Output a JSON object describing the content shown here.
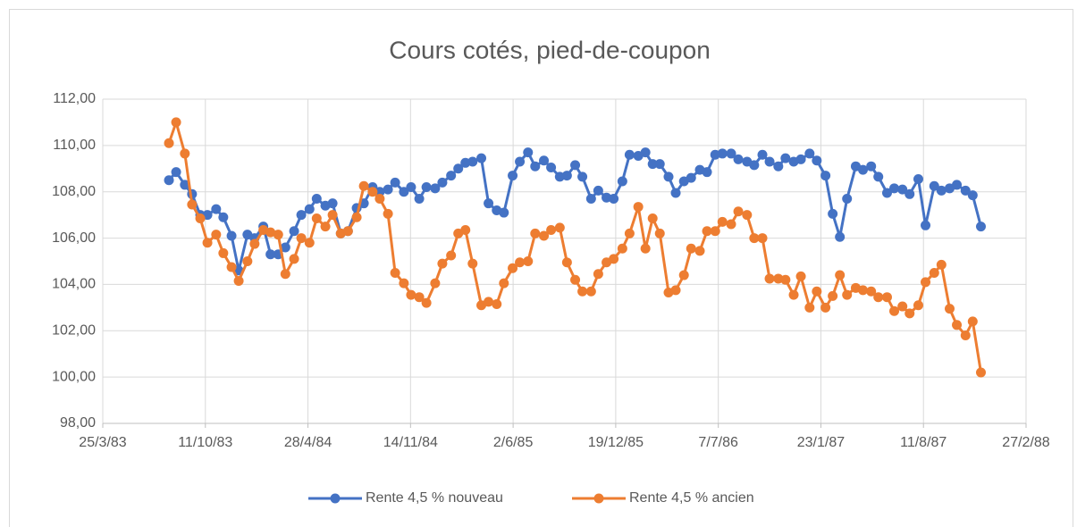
{
  "chart_data": {
    "type": "line",
    "title": "Cours cotés, pied-de-coupon",
    "x": [
      "1983-08-01",
      "1983-08-15",
      "1983-09-01",
      "1983-09-15",
      "1983-10-01",
      "1983-10-15",
      "1983-11-01",
      "1983-11-15",
      "1983-12-01",
      "1983-12-15",
      "1984-01-01",
      "1984-01-15",
      "1984-02-01",
      "1984-02-15",
      "1984-03-01",
      "1984-03-15",
      "1984-04-01",
      "1984-04-15",
      "1984-05-01",
      "1984-05-15",
      "1984-06-01",
      "1984-06-15",
      "1984-07-01",
      "1984-07-15",
      "1984-08-01",
      "1984-08-15",
      "1984-09-01",
      "1984-09-15",
      "1984-10-01",
      "1984-10-15",
      "1984-11-01",
      "1984-11-15",
      "1984-12-01",
      "1984-12-15",
      "1985-01-01",
      "1985-01-15",
      "1985-02-01",
      "1985-02-15",
      "1985-03-01",
      "1985-03-15",
      "1985-04-01",
      "1985-04-15",
      "1985-05-01",
      "1985-05-15",
      "1985-06-01",
      "1985-06-15",
      "1985-07-01",
      "1985-07-15",
      "1985-08-01",
      "1985-08-15",
      "1985-09-01",
      "1985-09-15",
      "1985-10-01",
      "1985-10-15",
      "1985-11-01",
      "1985-11-15",
      "1985-12-01",
      "1985-12-15",
      "1986-01-01",
      "1986-01-15",
      "1986-02-01",
      "1986-02-15",
      "1986-03-01",
      "1986-03-15",
      "1986-04-01",
      "1986-04-15",
      "1986-05-01",
      "1986-05-15",
      "1986-06-01",
      "1986-06-15",
      "1986-07-01",
      "1986-07-15",
      "1986-08-01",
      "1986-08-15",
      "1986-09-01",
      "1986-09-15",
      "1986-10-01",
      "1986-10-15",
      "1986-11-01",
      "1986-11-15",
      "1986-12-01",
      "1986-12-15",
      "1987-01-01",
      "1987-01-15",
      "1987-02-01",
      "1987-02-15",
      "1987-03-01",
      "1987-03-15",
      "1987-04-01",
      "1987-04-15",
      "1987-05-01",
      "1987-05-15",
      "1987-06-01",
      "1987-06-15",
      "1987-07-01",
      "1987-07-15",
      "1987-08-01",
      "1987-08-15",
      "1987-09-01",
      "1987-09-15",
      "1987-10-01",
      "1987-10-15",
      "1987-11-01",
      "1987-11-15",
      "1987-12-01"
    ],
    "series": [
      {
        "name": "Rente 4,5 % nouveau",
        "color": "#4472c4",
        "values": [
          108.5,
          108.85,
          108.3,
          107.9,
          107.0,
          107.0,
          107.25,
          106.9,
          106.1,
          104.6,
          106.15,
          106.0,
          106.5,
          105.3,
          105.3,
          105.6,
          106.3,
          107.0,
          107.25,
          107.7,
          107.4,
          107.5,
          106.2,
          106.3,
          107.3,
          107.5,
          108.2,
          108.0,
          108.1,
          108.4,
          108.0,
          108.2,
          107.7,
          108.2,
          108.15,
          108.4,
          108.7,
          109.0,
          109.25,
          109.3,
          109.45,
          107.5,
          107.2,
          107.1,
          108.7,
          109.3,
          109.7,
          109.1,
          109.35,
          109.05,
          108.65,
          108.7,
          109.15,
          108.65,
          107.7,
          108.05,
          107.75,
          107.7,
          108.45,
          109.6,
          109.55,
          109.7,
          109.2,
          109.2,
          108.65,
          107.95,
          108.45,
          108.6,
          108.95,
          108.85,
          109.6,
          109.65,
          109.65,
          109.4,
          109.3,
          109.15,
          109.6,
          109.3,
          109.1,
          109.45,
          109.3,
          109.4,
          109.65,
          109.35,
          108.7,
          107.05,
          106.05,
          107.7,
          109.1,
          108.95,
          109.1,
          108.65,
          107.95,
          108.15,
          108.1,
          107.9,
          108.55,
          106.55,
          108.25,
          108.05,
          108.15,
          108.3,
          108.05,
          107.85,
          106.5
        ]
      },
      {
        "name": "Rente 4,5 % ancien",
        "color": "#ed7d31",
        "values": [
          110.1,
          111.0,
          109.65,
          107.45,
          106.85,
          105.8,
          106.15,
          105.35,
          104.75,
          104.15,
          105.0,
          105.75,
          106.35,
          106.25,
          106.15,
          104.45,
          105.1,
          106.0,
          105.8,
          106.85,
          106.5,
          107.0,
          106.2,
          106.3,
          106.9,
          108.25,
          108.0,
          107.7,
          107.05,
          104.5,
          104.05,
          103.55,
          103.45,
          103.2,
          104.05,
          104.9,
          105.25,
          106.2,
          106.35,
          104.9,
          103.1,
          103.25,
          103.15,
          104.05,
          104.7,
          104.95,
          105.0,
          106.2,
          106.1,
          106.35,
          106.45,
          104.95,
          104.2,
          103.7,
          103.7,
          104.45,
          104.95,
          105.1,
          105.55,
          106.2,
          107.35,
          105.55,
          106.85,
          106.2,
          103.65,
          103.75,
          104.4,
          105.55,
          105.45,
          106.3,
          106.3,
          106.7,
          106.6,
          107.15,
          107.0,
          106.0,
          106.0,
          104.25,
          104.25,
          104.2,
          103.55,
          104.35,
          103.0,
          103.7,
          103.0,
          103.5,
          104.4,
          103.55,
          103.85,
          103.75,
          103.7,
          103.45,
          103.45,
          102.85,
          103.05,
          102.75,
          103.1,
          104.1,
          104.5,
          104.85,
          102.95,
          102.25,
          101.8,
          102.4,
          100.2
        ]
      }
    ],
    "xlim": [
      "1983-03-25",
      "1988-02-27"
    ],
    "xticks": [
      {
        "value": "1983-03-25",
        "label": "25/3/83"
      },
      {
        "value": "1983-10-11",
        "label": "11/10/83"
      },
      {
        "value": "1984-04-28",
        "label": "28/4/84"
      },
      {
        "value": "1984-11-14",
        "label": "14/11/84"
      },
      {
        "value": "1985-06-02",
        "label": "2/6/85"
      },
      {
        "value": "1985-12-19",
        "label": "19/12/85"
      },
      {
        "value": "1986-07-07",
        "label": "7/7/86"
      },
      {
        "value": "1987-01-23",
        "label": "23/1/87"
      },
      {
        "value": "1987-08-11",
        "label": "11/8/87"
      },
      {
        "value": "1988-02-27",
        "label": "27/2/88"
      }
    ],
    "ylim": [
      98,
      112
    ],
    "yticks": [
      {
        "value": 98,
        "label": "98,00"
      },
      {
        "value": 100,
        "label": "100,00"
      },
      {
        "value": 102,
        "label": "102,00"
      },
      {
        "value": 104,
        "label": "104,00"
      },
      {
        "value": 106,
        "label": "106,00"
      },
      {
        "value": 108,
        "label": "108,00"
      },
      {
        "value": 110,
        "label": "110,00"
      },
      {
        "value": 112,
        "label": "112,00"
      }
    ],
    "grid": true,
    "legend": "bottom"
  }
}
